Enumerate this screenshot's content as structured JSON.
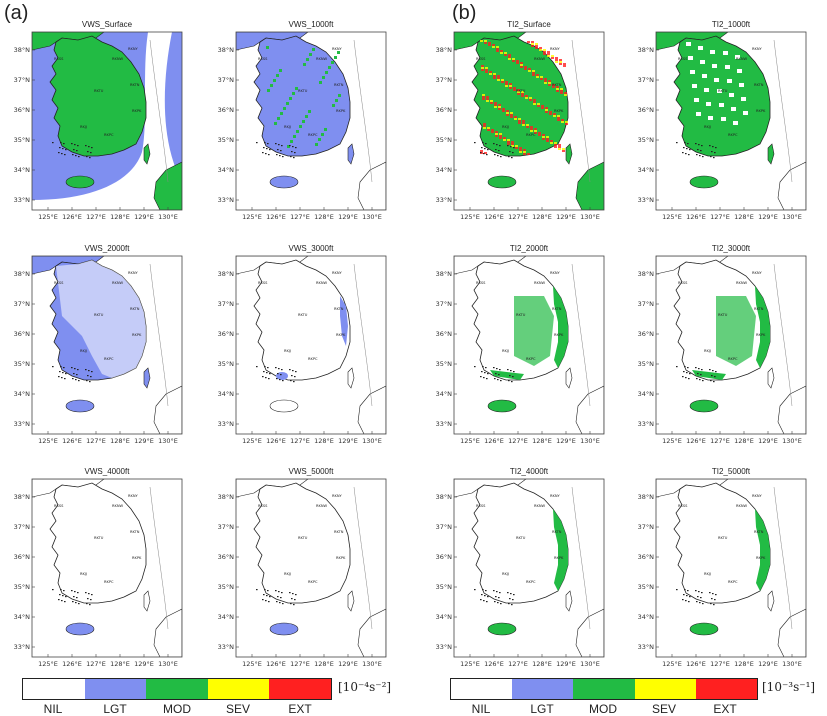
{
  "panel_labels": [
    "(a)",
    "(b)"
  ],
  "maps": [
    {
      "title": "VWS_Surface",
      "level": "vws-surface"
    },
    {
      "title": "VWS_1000ft",
      "level": "vws-1000"
    },
    {
      "title": "TI2_Surface",
      "level": "ti2-surface"
    },
    {
      "title": "TI2_1000ft",
      "level": "ti2-1000"
    },
    {
      "title": "VWS_2000ft",
      "level": "vws-2000"
    },
    {
      "title": "VWS_3000ft",
      "level": "vws-3000"
    },
    {
      "title": "TI2_2000ft",
      "level": "ti2-2000"
    },
    {
      "title": "TI2_3000ft",
      "level": "ti2-3000"
    },
    {
      "title": "VWS_4000ft",
      "level": "vws-4000"
    },
    {
      "title": "VWS_5000ft",
      "level": "vws-5000"
    },
    {
      "title": "TI2_4000ft",
      "level": "ti2-4000"
    },
    {
      "title": "TI2_5000ft",
      "level": "ti2-5000"
    }
  ],
  "lat_ticks": [
    "38°N",
    "37°N",
    "36°N",
    "35°N",
    "34°N",
    "33°N"
  ],
  "lon_ticks": [
    "125°E",
    "126°E",
    "127°E",
    "128°E",
    "129°E",
    "130°E"
  ],
  "stations": [
    "RKSS",
    "RKNW",
    "RKTU",
    "RKJJ",
    "RKPK",
    "RKPC",
    "RKNY",
    "RKTN"
  ],
  "categories": [
    "NIL",
    "LGT",
    "MOD",
    "SEV",
    "EXT"
  ],
  "colors": {
    "NIL": "#ffffff",
    "LGT": "#7f8ff0",
    "MOD": "#22bb44",
    "SEV": "#ffff00",
    "EXT": "#ff2020"
  },
  "units": {
    "vws": "[10⁻⁴s⁻²]",
    "ti2": "[10⁻³s⁻¹]"
  }
}
